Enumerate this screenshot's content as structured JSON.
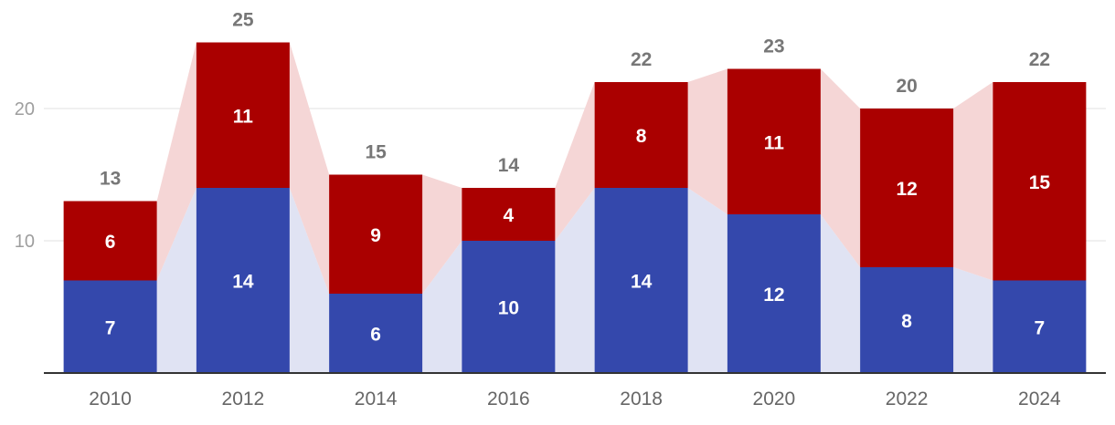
{
  "chart_data": {
    "type": "bar",
    "stacked": true,
    "categories": [
      "2010",
      "2012",
      "2014",
      "2016",
      "2018",
      "2020",
      "2022",
      "2024"
    ],
    "series": [
      {
        "name": "blue",
        "color": "#3448ac",
        "band_color": "#e0e3f3",
        "values": [
          7,
          14,
          6,
          10,
          14,
          12,
          8,
          7
        ]
      },
      {
        "name": "red",
        "color": "#aa0000",
        "band_color": "#f5d6d6",
        "values": [
          6,
          11,
          9,
          4,
          8,
          11,
          12,
          15
        ]
      }
    ],
    "totals": [
      "13",
      "25",
      "15",
      "14",
      "22",
      "23",
      "20",
      "22"
    ],
    "y_ticks": [
      "10",
      "20"
    ],
    "ylim": [
      0,
      27
    ],
    "grid": true,
    "title": "",
    "xlabel": "",
    "ylabel": ""
  }
}
